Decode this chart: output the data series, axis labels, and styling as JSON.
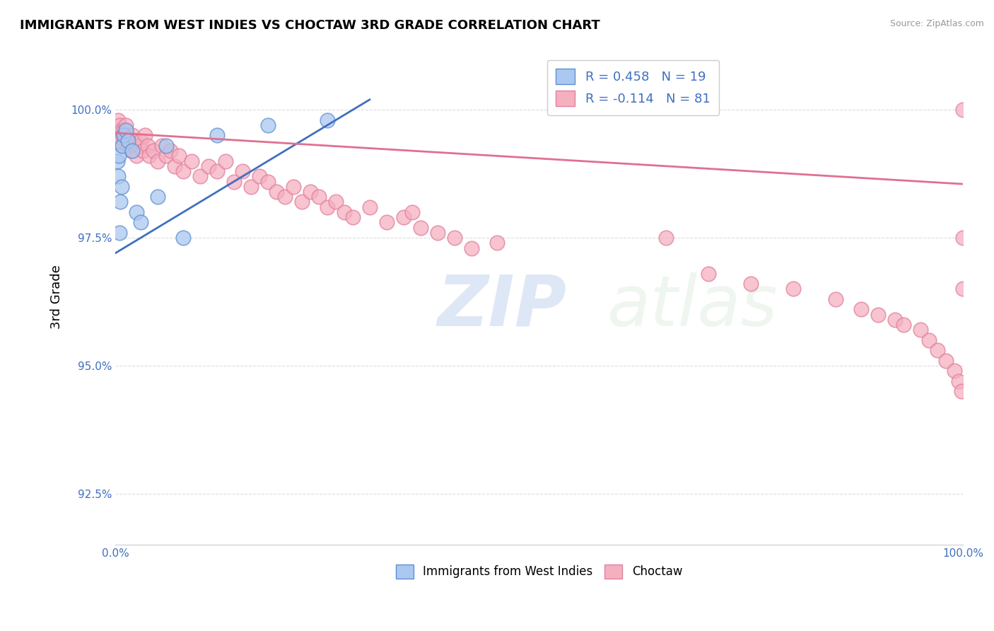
{
  "title": "IMMIGRANTS FROM WEST INDIES VS CHOCTAW 3RD GRADE CORRELATION CHART",
  "source": "Source: ZipAtlas.com",
  "ylabel": "3rd Grade",
  "ylabel_ticks": [
    92.5,
    95.0,
    97.5,
    100.0
  ],
  "ylabel_tick_labels": [
    "92.5%",
    "95.0%",
    "97.5%",
    "100.0%"
  ],
  "xmin": 0.0,
  "xmax": 100.0,
  "ymin": 91.5,
  "ymax": 101.2,
  "legend_blue_r": "R = 0.458",
  "legend_blue_n": "N = 19",
  "legend_pink_r": "R = -0.114",
  "legend_pink_n": "N = 81",
  "blue_color": "#aac8f0",
  "blue_edge_color": "#6090d0",
  "blue_line_color": "#4070c0",
  "pink_color": "#f5b0c0",
  "pink_edge_color": "#e080a0",
  "pink_line_color": "#e07090",
  "watermark_zip": "ZIP",
  "watermark_atlas": "atlas",
  "blue_scatter_x": [
    0.2,
    0.3,
    0.4,
    0.5,
    0.6,
    0.7,
    0.8,
    1.0,
    1.2,
    1.5,
    2.0,
    2.5,
    3.0,
    5.0,
    6.0,
    8.0,
    12.0,
    18.0,
    25.0
  ],
  "blue_scatter_y": [
    99.0,
    98.7,
    99.1,
    97.6,
    98.2,
    98.5,
    99.3,
    99.5,
    99.6,
    99.4,
    99.2,
    98.0,
    97.8,
    98.3,
    99.3,
    97.5,
    99.5,
    99.7,
    99.8
  ],
  "pink_scatter_x": [
    0.2,
    0.3,
    0.4,
    0.5,
    0.6,
    0.7,
    0.8,
    0.9,
    1.0,
    1.1,
    1.2,
    1.3,
    1.5,
    1.6,
    1.8,
    2.0,
    2.2,
    2.4,
    2.5,
    2.7,
    3.0,
    3.2,
    3.5,
    3.8,
    4.0,
    4.5,
    5.0,
    5.5,
    6.0,
    6.5,
    7.0,
    7.5,
    8.0,
    9.0,
    10.0,
    11.0,
    12.0,
    13.0,
    14.0,
    15.0,
    16.0,
    17.0,
    18.0,
    19.0,
    20.0,
    21.0,
    22.0,
    23.0,
    24.0,
    25.0,
    26.0,
    27.0,
    28.0,
    30.0,
    32.0,
    34.0,
    35.0,
    36.0,
    38.0,
    40.0,
    42.0,
    45.0,
    65.0,
    70.0,
    75.0,
    80.0,
    85.0,
    88.0,
    90.0,
    92.0,
    93.0,
    95.0,
    96.0,
    97.0,
    98.0,
    99.0,
    99.5,
    99.8,
    100.0,
    100.0,
    100.0
  ],
  "pink_scatter_y": [
    99.6,
    99.8,
    99.5,
    99.7,
    99.4,
    99.6,
    99.3,
    99.5,
    99.6,
    99.4,
    99.7,
    99.5,
    99.3,
    99.4,
    99.2,
    99.5,
    99.3,
    99.4,
    99.1,
    99.3,
    99.4,
    99.2,
    99.5,
    99.3,
    99.1,
    99.2,
    99.0,
    99.3,
    99.1,
    99.2,
    98.9,
    99.1,
    98.8,
    99.0,
    98.7,
    98.9,
    98.8,
    99.0,
    98.6,
    98.8,
    98.5,
    98.7,
    98.6,
    98.4,
    98.3,
    98.5,
    98.2,
    98.4,
    98.3,
    98.1,
    98.2,
    98.0,
    97.9,
    98.1,
    97.8,
    97.9,
    98.0,
    97.7,
    97.6,
    97.5,
    97.3,
    97.4,
    97.5,
    96.8,
    96.6,
    96.5,
    96.3,
    96.1,
    96.0,
    95.9,
    95.8,
    95.7,
    95.5,
    95.3,
    95.1,
    94.9,
    94.7,
    94.5,
    96.5,
    97.5,
    100.0
  ]
}
